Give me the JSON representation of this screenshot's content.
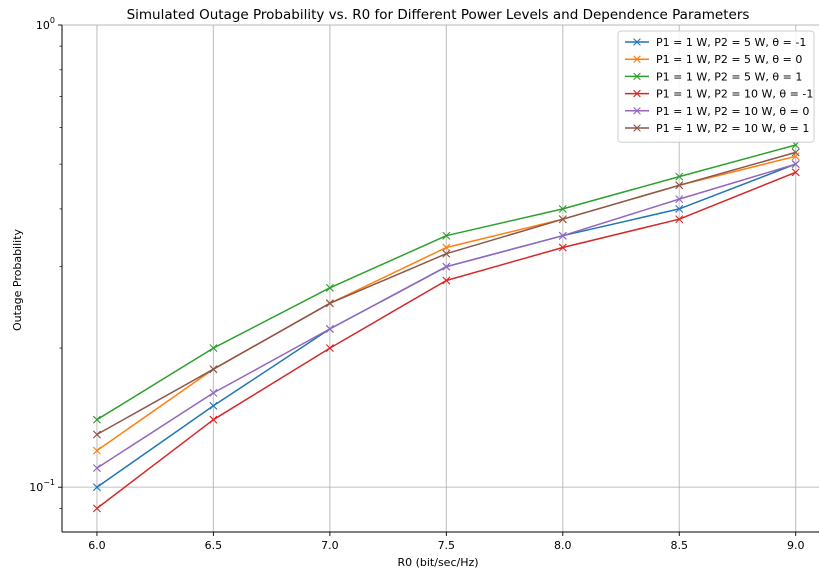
{
  "chart_data": {
    "type": "line",
    "title": "Simulated Outage Probability vs. R0 for Different Power Levels and Dependence Parameters",
    "xlabel": "R0 (bit/sec/Hz)",
    "ylabel": "Outage Probability",
    "y_scale": "log",
    "xlim": [
      5.85,
      9.1
    ],
    "ylim": [
      0.08,
      1.0
    ],
    "grid": true,
    "legend_position": "top-right",
    "x": [
      6.0,
      6.5,
      7.0,
      7.5,
      8.0,
      8.5,
      9.0
    ],
    "x_tick_labels": [
      "6.0",
      "6.5",
      "7.0",
      "7.5",
      "8.0",
      "8.5",
      "9.0"
    ],
    "y_tick_labels": [
      {
        "value": 1.0,
        "base": "10",
        "exp": "0"
      },
      {
        "value": 0.1,
        "base": "10",
        "exp": "−1"
      }
    ],
    "series": [
      {
        "name": "P1 = 1 W, P2 = 5 W, θ = -1",
        "color": "#1f77b4",
        "values": [
          0.1,
          0.15,
          0.22,
          0.3,
          0.35,
          0.4,
          0.5
        ]
      },
      {
        "name": "P1 = 1 W, P2 = 5 W, θ = 0",
        "color": "#ff7f0e",
        "values": [
          0.12,
          0.18,
          0.25,
          0.33,
          0.38,
          0.45,
          0.52
        ]
      },
      {
        "name": "P1 = 1 W, P2 = 5 W, θ = 1",
        "color": "#2ca02c",
        "values": [
          0.14,
          0.2,
          0.27,
          0.35,
          0.4,
          0.47,
          0.55
        ]
      },
      {
        "name": "P1 = 1 W, P2 = 10 W, θ = -1",
        "color": "#d62728",
        "values": [
          0.09,
          0.14,
          0.2,
          0.28,
          0.33,
          0.38,
          0.48
        ]
      },
      {
        "name": "P1 = 1 W, P2 = 10 W, θ = 0",
        "color": "#9467bd",
        "values": [
          0.11,
          0.16,
          0.22,
          0.3,
          0.35,
          0.42,
          0.5
        ]
      },
      {
        "name": "P1 = 1 W, P2 = 10 W, θ = 1",
        "color": "#8c564b",
        "values": [
          0.13,
          0.18,
          0.25,
          0.32,
          0.38,
          0.45,
          0.53
        ]
      }
    ]
  }
}
